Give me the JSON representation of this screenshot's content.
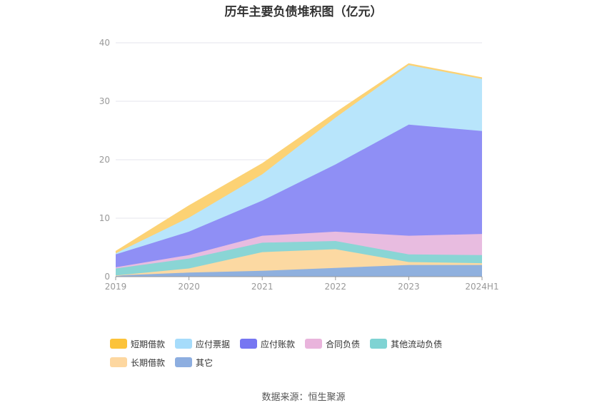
{
  "chart_data": {
    "type": "area",
    "stacked": true,
    "title": "历年主要负债堆积图（亿元）",
    "categories": [
      "2019",
      "2020",
      "2021",
      "2022",
      "2023",
      "2024H1"
    ],
    "ylim": [
      0,
      40
    ],
    "yticks": [
      0,
      10,
      20,
      30,
      40
    ],
    "grid": true,
    "legend_position": "bottom",
    "series": [
      {
        "name": "其它",
        "color": "#8fb0de",
        "values": [
          0.2,
          0.7,
          1.0,
          1.5,
          2.0,
          2.0
        ]
      },
      {
        "name": "长期借款",
        "color": "#fcd9a2",
        "values": [
          0.0,
          0.7,
          3.2,
          3.2,
          0.5,
          0.3
        ]
      },
      {
        "name": "其他流动负债",
        "color": "#8ad5d5",
        "values": [
          1.2,
          1.7,
          1.6,
          1.4,
          1.3,
          1.4
        ]
      },
      {
        "name": "合同负债",
        "color": "#e8bce0",
        "values": [
          0.2,
          0.6,
          1.2,
          1.6,
          3.2,
          3.6
        ]
      },
      {
        "name": "应付账款",
        "color": "#8f8ff5",
        "values": [
          2.2,
          4.0,
          6.0,
          11.5,
          19.0,
          17.6
        ]
      },
      {
        "name": "应付票据",
        "color": "#b8e5fb",
        "values": [
          0.2,
          2.4,
          4.5,
          8.0,
          10.2,
          8.9
        ]
      },
      {
        "name": "短期借款",
        "color": "#fcd274",
        "values": [
          0.3,
          2.0,
          1.8,
          0.8,
          0.2,
          0.2
        ]
      }
    ],
    "legend_order": [
      "短期借款",
      "应付票据",
      "应付账款",
      "合同负债",
      "其他流动负债",
      "长期借款",
      "其它"
    ],
    "legend_colors": {
      "短期借款": "#fcc33a",
      "应付票据": "#a6dcfb",
      "应付账款": "#7676f2",
      "合同负债": "#e9b4dc",
      "其他流动负债": "#7fd3d3",
      "长期借款": "#fdd7a0",
      "其它": "#8daee0"
    }
  },
  "source_text": "数据来源：恒生聚源"
}
